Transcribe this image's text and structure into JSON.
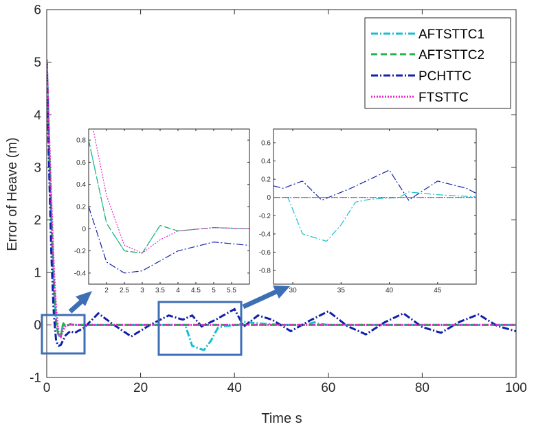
{
  "chart_data": {
    "type": "line",
    "title": "",
    "xlabel": "Time s",
    "ylabel": "Error of Heave (m)",
    "xlim": [
      0,
      100
    ],
    "ylim": [
      -1,
      6
    ],
    "xticks": [
      "0",
      "20",
      "40",
      "60",
      "80",
      "100"
    ],
    "yticks": [
      "-1",
      "0",
      "1",
      "2",
      "3",
      "4",
      "5",
      "6"
    ],
    "legend_position": "top-right",
    "series": [
      {
        "name": "AFTSTTC1",
        "color": "#17becf",
        "style": "dash-dot",
        "x": [
          0,
          0.5,
          1.0,
          1.5,
          2.0,
          2.5,
          3.0,
          3.5,
          4,
          5,
          6,
          10,
          20,
          28,
          29.5,
          31,
          33.5,
          35,
          36.5,
          38,
          41,
          42,
          45,
          50,
          55,
          57,
          58,
          60,
          70,
          80,
          90,
          100
        ],
        "y": [
          5.05,
          3.4,
          2.0,
          0.8,
          0.05,
          -0.2,
          -0.22,
          0.03,
          -0.02,
          0.01,
          0.0,
          0.0,
          0.0,
          0.0,
          0.0,
          -0.4,
          -0.48,
          -0.3,
          -0.05,
          -0.02,
          0.0,
          0.06,
          0.03,
          0.0,
          0.0,
          0.05,
          0.02,
          0.0,
          0.0,
          0.0,
          0.0,
          0.0
        ]
      },
      {
        "name": "AFTSTTC2",
        "color": "#22b14c",
        "style": "dashed",
        "x": [
          0,
          0.5,
          1.0,
          1.5,
          2.0,
          2.5,
          3.0,
          3.5,
          4,
          5,
          6,
          100
        ],
        "y": [
          5.05,
          3.4,
          2.0,
          0.8,
          0.05,
          -0.2,
          -0.22,
          0.03,
          -0.02,
          0.01,
          0.0,
          0.0
        ]
      },
      {
        "name": "PCHTTC",
        "color": "#1020a8",
        "style": "dash-dot",
        "x": [
          0,
          0.5,
          1.0,
          1.5,
          2.0,
          2.5,
          3.0,
          4.0,
          5.0,
          6.0,
          8,
          11,
          14,
          18,
          22,
          26,
          29,
          31,
          33,
          36,
          40,
          42,
          45,
          48,
          52,
          56,
          60,
          64,
          68,
          72,
          76,
          80,
          84,
          88,
          92,
          96,
          100
        ],
        "y": [
          5.0,
          3.0,
          1.3,
          0.2,
          -0.3,
          -0.4,
          -0.38,
          -0.2,
          -0.12,
          -0.15,
          -0.05,
          0.22,
          0.02,
          -0.22,
          0.0,
          0.18,
          0.1,
          0.18,
          -0.03,
          0.1,
          0.3,
          -0.03,
          0.18,
          0.1,
          -0.12,
          0.08,
          0.26,
          -0.02,
          -0.18,
          0.05,
          0.22,
          -0.04,
          -0.15,
          0.06,
          0.2,
          -0.02,
          -0.12
        ]
      },
      {
        "name": "FTSTTC",
        "color": "#ee22cc",
        "style": "dotted",
        "x": [
          0,
          0.5,
          1.0,
          1.5,
          2.0,
          2.5,
          3.0,
          3.5,
          4,
          5,
          6,
          100
        ],
        "y": [
          5.05,
          3.6,
          2.3,
          1.1,
          0.3,
          -0.15,
          -0.22,
          -0.1,
          -0.02,
          0.01,
          0.0,
          0.0
        ]
      }
    ],
    "insets": [
      {
        "name": "inset-1",
        "xlim": [
          1.5,
          6
        ],
        "ylim": [
          -0.5,
          0.9
        ],
        "xticks": [
          "2",
          "2.5",
          "3",
          "3.5",
          "4",
          "4.5",
          "5",
          "5.5"
        ],
        "yticks": [
          "-0.4",
          "-0.2",
          "0",
          "0.2",
          "0.4",
          "0.6",
          "0.8"
        ]
      },
      {
        "name": "inset-2",
        "xlim": [
          28,
          49
        ],
        "ylim": [
          -0.95,
          0.75
        ],
        "xticks": [
          "30",
          "35",
          "40",
          "45"
        ],
        "yticks": [
          "-0.8",
          "-0.6",
          "-0.4",
          "-0.2",
          "0",
          "0.2",
          "0.4",
          "0.6"
        ]
      }
    ]
  }
}
